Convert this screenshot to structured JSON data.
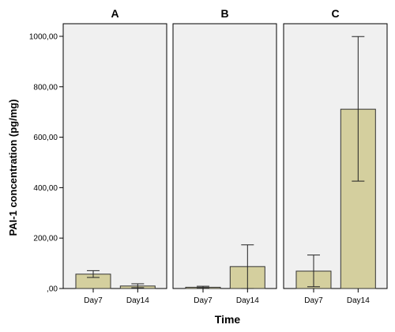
{
  "chart_data": {
    "type": "bar",
    "ylabel": "PAI-1 concentration (pg/mg)",
    "xlabel": "Time",
    "ylim": [
      0,
      1050
    ],
    "yticks": [
      0,
      200,
      400,
      600,
      800,
      1000
    ],
    "ytick_labels": [
      ",00",
      "200,00",
      "400,00",
      "600,00",
      "800,00",
      "1000,00"
    ],
    "categories": [
      "Day7",
      "Day14"
    ],
    "panels": [
      {
        "title": "A",
        "values": [
          57,
          10
        ],
        "error_low": [
          44,
          3
        ],
        "error_high": [
          71,
          19
        ]
      },
      {
        "title": "B",
        "values": [
          5,
          87
        ],
        "error_low": [
          1,
          0
        ],
        "error_high": [
          9,
          173
        ]
      },
      {
        "title": "C",
        "values": [
          69,
          711
        ],
        "error_low": [
          7,
          426
        ],
        "error_high": [
          133,
          999
        ]
      }
    ],
    "bar_color": "#d4cf9e",
    "panel_background": "#f0f0f0",
    "grid": false
  }
}
